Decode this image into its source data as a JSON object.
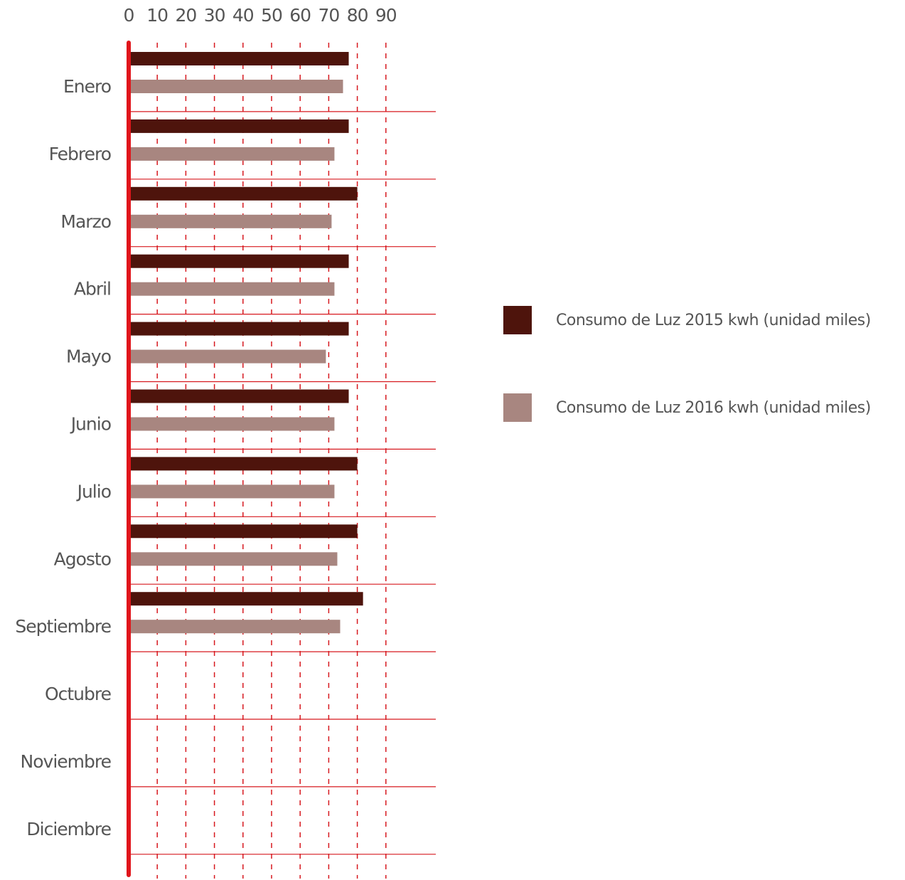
{
  "chart_data": {
    "type": "bar",
    "orientation": "horizontal",
    "categories": [
      "Enero",
      "Febrero",
      "Marzo",
      "Abril",
      "Mayo",
      "Junio",
      "Julio",
      "Agosto",
      "Septiembre",
      "Octubre",
      "Noviembre",
      "Diciembre"
    ],
    "series": [
      {
        "name": "Consumo de Luz 2015 kwh (unidad miles)",
        "color": "#4e140c",
        "values": [
          77,
          77,
          80,
          77,
          77,
          77,
          80,
          80,
          82,
          null,
          null,
          null
        ]
      },
      {
        "name": "Consumo de Luz 2016 kwh (unidad miles)",
        "color": "#a88680",
        "values": [
          75,
          72,
          71,
          72,
          69,
          72,
          72,
          73,
          74,
          null,
          null,
          null
        ]
      }
    ],
    "xticks": [
      0,
      10,
      20,
      30,
      40,
      50,
      60,
      70,
      80,
      90
    ],
    "xlim": [
      0,
      107
    ],
    "grid": "vertical dashed at ticks, horizontal separators between months",
    "grid_color": "#d7191f",
    "axis_color": "#e0151b",
    "legend_position": "right"
  }
}
